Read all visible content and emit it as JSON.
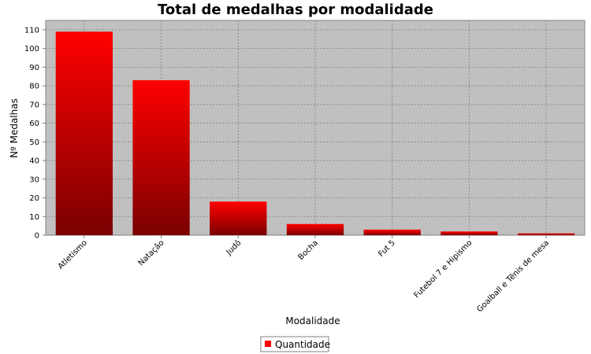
{
  "chart_data": {
    "type": "bar",
    "title": "Total de medalhas por modalidade",
    "xlabel": "Modalidade",
    "ylabel": "Nº Medalhas",
    "categories": [
      "Atletismo",
      "Natação",
      "Judô",
      "Bocha",
      "Fut 5",
      "Futebol 7 e Hipismo",
      "Goalball e Tênis de mesa"
    ],
    "series": [
      {
        "name": "Quantidade",
        "values": [
          109,
          83,
          18,
          6,
          3,
          2,
          1
        ]
      }
    ],
    "ylim": [
      0,
      115
    ],
    "yticks": [
      0,
      10,
      20,
      30,
      40,
      50,
      60,
      70,
      80,
      90,
      100,
      110
    ],
    "grid": true,
    "legend_position": "bottom",
    "colors": {
      "plot_background": "#c0c0c0",
      "bar_top": "#ff0000",
      "bar_bottom": "#7a0000",
      "grid": "#808080"
    }
  }
}
